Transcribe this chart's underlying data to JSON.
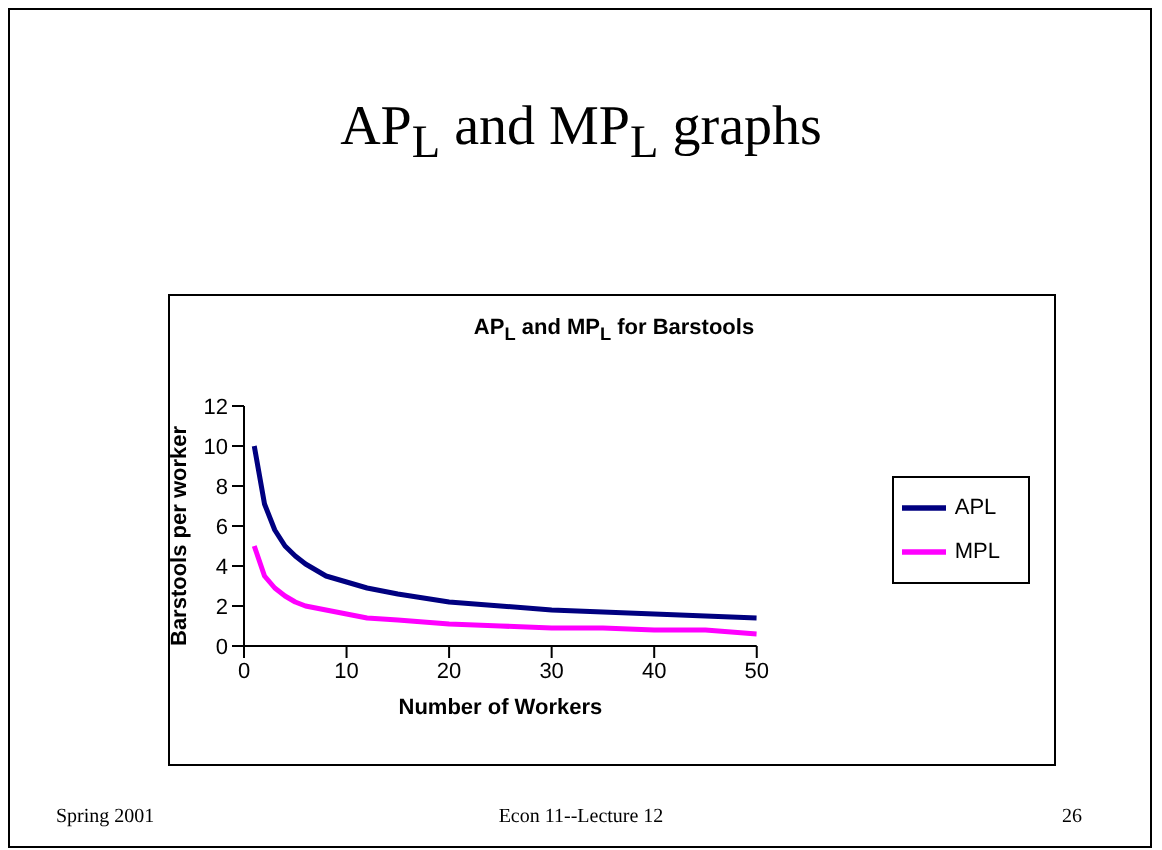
{
  "chart_data": {
    "type": "line",
    "title": "AP$_{L}$ and MP$_{L}$ graphs",
    "subtitle": "AP$_{L}$ and MP$_{L}$ for Barstools",
    "xlabel": "Number of Workers",
    "ylabel": "Barstools per worker",
    "x": [
      1,
      2,
      3,
      4,
      5,
      6,
      8,
      10,
      12,
      15,
      20,
      25,
      30,
      35,
      40,
      45,
      50
    ],
    "series": [
      {
        "name": "APL",
        "color": "#000080",
        "values": [
          10,
          7.1,
          5.8,
          5,
          4.5,
          4.1,
          3.5,
          3.2,
          2.9,
          2.6,
          2.2,
          2,
          1.8,
          1.7,
          1.6,
          1.5,
          1.4
        ]
      },
      {
        "name": "MPL",
        "color": "#ff00ff",
        "values": [
          5,
          3.5,
          2.9,
          2.5,
          2.2,
          2,
          1.8,
          1.6,
          1.4,
          1.3,
          1.1,
          1,
          0.9,
          0.9,
          0.8,
          0.8,
          0.6
        ]
      }
    ],
    "xlim": [
      0,
      50
    ],
    "xticks": [
      0,
      10,
      20,
      30,
      40,
      50
    ],
    "ylim": [
      0,
      12
    ],
    "yticks": [
      0,
      2,
      4,
      6,
      8,
      10,
      12
    ],
    "grid": false,
    "legend": "right",
    "marker": "none",
    "line_style": "solid",
    "annotations": [
      "Spring 2001",
      "Econ 11--Lecture 12",
      "26"
    ]
  }
}
